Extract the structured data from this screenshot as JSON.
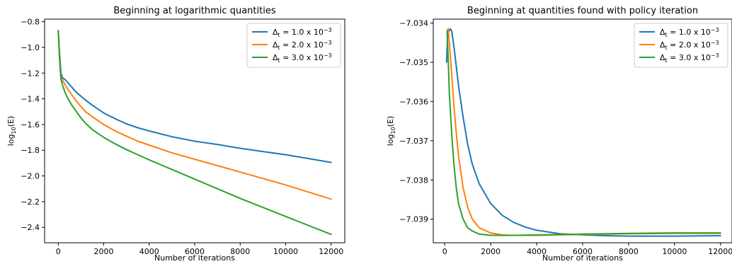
{
  "chart_data": [
    {
      "type": "line",
      "title": "Beginning at logarithmic quantities",
      "xlabel": "Number of iterations",
      "ylabel_base": "log",
      "ylabel_sub": "10",
      "ylabel_tail": "(E)",
      "xlim": [
        -600,
        12600
      ],
      "ylim": [
        -2.52,
        -0.78
      ],
      "xticks": [
        0,
        2000,
        4000,
        6000,
        8000,
        10000,
        12000
      ],
      "yticks": [
        -2.4,
        -2.2,
        -2.0,
        -1.8,
        -1.6,
        -1.4,
        -1.2,
        -1.0,
        -0.8
      ],
      "grid": false,
      "legend_position": "top-right",
      "series": [
        {
          "name": "Δt = 1.0 x 10−3",
          "color": "#1f77b4",
          "x": [
            0,
            60,
            120,
            200,
            300,
            400,
            600,
            800,
            1000,
            1200,
            1500,
            2000,
            2500,
            3000,
            3500,
            4000,
            5000,
            6000,
            7000,
            8000,
            9000,
            10000,
            11000,
            12000
          ],
          "y": [
            -0.87,
            -1.05,
            -1.2,
            -1.24,
            -1.25,
            -1.27,
            -1.31,
            -1.35,
            -1.38,
            -1.41,
            -1.45,
            -1.51,
            -1.555,
            -1.595,
            -1.625,
            -1.65,
            -1.695,
            -1.73,
            -1.755,
            -1.785,
            -1.81,
            -1.835,
            -1.865,
            -1.895
          ]
        },
        {
          "name": "Δt = 2.0 x 10−3",
          "color": "#ff7f0e",
          "x": [
            0,
            60,
            120,
            200,
            300,
            400,
            600,
            800,
            1000,
            1200,
            1500,
            2000,
            2500,
            3000,
            3500,
            4000,
            5000,
            6000,
            7000,
            8000,
            9000,
            10000,
            11000,
            12000
          ],
          "y": [
            -0.87,
            -1.08,
            -1.23,
            -1.26,
            -1.29,
            -1.32,
            -1.37,
            -1.42,
            -1.46,
            -1.5,
            -1.54,
            -1.6,
            -1.65,
            -1.69,
            -1.73,
            -1.76,
            -1.82,
            -1.87,
            -1.92,
            -1.97,
            -2.02,
            -2.07,
            -2.125,
            -2.18
          ]
        },
        {
          "name": "Δt = 3.0 x 10−3",
          "color": "#2ca02c",
          "x": [
            0,
            60,
            120,
            200,
            300,
            400,
            600,
            800,
            1000,
            1200,
            1500,
            2000,
            2500,
            3000,
            3500,
            4000,
            5000,
            6000,
            7000,
            8000,
            9000,
            10000,
            11000,
            12000
          ],
          "y": [
            -0.87,
            -1.1,
            -1.25,
            -1.3,
            -1.35,
            -1.39,
            -1.45,
            -1.5,
            -1.55,
            -1.59,
            -1.64,
            -1.7,
            -1.75,
            -1.795,
            -1.835,
            -1.875,
            -1.95,
            -2.025,
            -2.1,
            -2.175,
            -2.245,
            -2.315,
            -2.385,
            -2.455
          ]
        }
      ]
    },
    {
      "type": "line",
      "title": "Beginning at quantities found with policy iteration",
      "xlabel": "Number of iterations",
      "ylabel_base": "log",
      "ylabel_sub": "10",
      "ylabel_tail": "(E)",
      "xlim": [
        -500,
        12500
      ],
      "ylim": [
        -7.0396,
        -7.0339
      ],
      "xticks": [
        0,
        2000,
        4000,
        6000,
        8000,
        10000,
        12000
      ],
      "yticks": [
        -7.039,
        -7.038,
        -7.037,
        -7.036,
        -7.035,
        -7.034
      ],
      "grid": false,
      "legend_position": "top-right",
      "series": [
        {
          "name": "Δt = 1.0 x 10−3",
          "color": "#1f77b4",
          "x": [
            80,
            120,
            160,
            200,
            250,
            300,
            400,
            500,
            600,
            800,
            1000,
            1200,
            1500,
            2000,
            2500,
            3000,
            3500,
            4000,
            5000,
            6000,
            7000,
            8000,
            9000,
            10000,
            12000
          ],
          "y": [
            -7.035,
            -7.0344,
            -7.03415,
            -7.0342,
            -7.03415,
            -7.0342,
            -7.0346,
            -7.0351,
            -7.0356,
            -7.0364,
            -7.0371,
            -7.0376,
            -7.0381,
            -7.0386,
            -7.0389,
            -7.03908,
            -7.0392,
            -7.03928,
            -7.03937,
            -7.0394,
            -7.03942,
            -7.03943,
            -7.03943,
            -7.03943,
            -7.03942
          ]
        },
        {
          "name": "Δt = 2.0 x 10−3",
          "color": "#ff7f0e",
          "x": [
            100,
            150,
            200,
            300,
            400,
            500,
            600,
            800,
            1000,
            1200,
            1500,
            2000,
            2500,
            3000,
            4000,
            5000,
            6000,
            8000,
            10000,
            12000
          ],
          "y": [
            -7.0342,
            -7.03415,
            -7.0345,
            -7.0353,
            -7.0361,
            -7.0368,
            -7.0374,
            -7.0382,
            -7.0387,
            -7.039,
            -7.03922,
            -7.03935,
            -7.0394,
            -7.03941,
            -7.03941,
            -7.0394,
            -7.03939,
            -7.03937,
            -7.03936,
            -7.03936
          ]
        },
        {
          "name": "Δt = 3.0 x 10−3",
          "color": "#2ca02c",
          "x": [
            100,
            150,
            200,
            300,
            400,
            500,
            600,
            800,
            1000,
            1200,
            1500,
            2000,
            2500,
            3000,
            4000,
            5000,
            6000,
            8000,
            10000,
            12000
          ],
          "y": [
            -7.0342,
            -7.0349,
            -7.0358,
            -7.0368,
            -7.0376,
            -7.0382,
            -7.0386,
            -7.039,
            -7.03922,
            -7.0393,
            -7.03938,
            -7.03941,
            -7.03941,
            -7.03941,
            -7.0394,
            -7.03939,
            -7.03938,
            -7.03936,
            -7.03935,
            -7.03935
          ]
        }
      ]
    }
  ]
}
